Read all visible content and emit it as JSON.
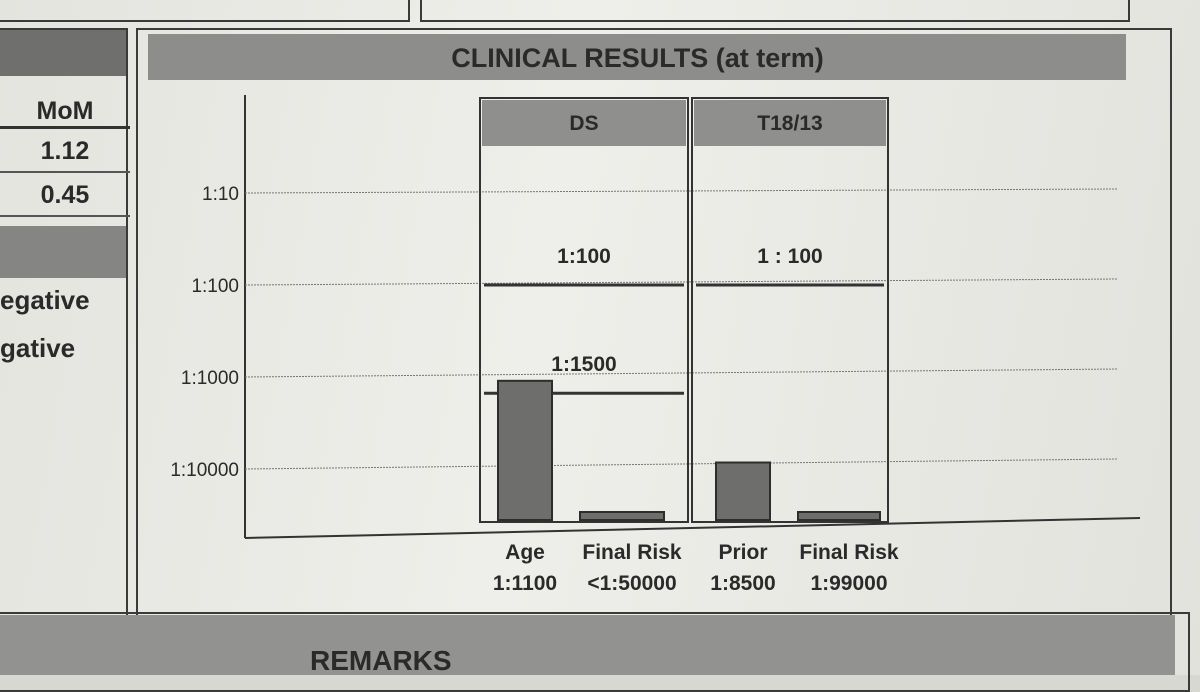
{
  "left_panel": {
    "mom_header": "MoM",
    "mom_values": [
      "1.12",
      "0.45"
    ],
    "results": [
      "egative",
      "gative"
    ]
  },
  "section_title": "CLINICAL RESULTS (at term)",
  "remarks_title": "REMARKS",
  "chart_data": {
    "type": "bar",
    "y_scale": "log-reciprocal",
    "y_ticks": [
      "1:10",
      "1:100",
      "1:1000",
      "1:10000"
    ],
    "groups": [
      {
        "name": "DS",
        "cutoffs": [
          {
            "label": "1:100",
            "value": 100
          },
          {
            "label": "1:1500",
            "value": 1500
          }
        ],
        "bars": [
          {
            "label": "Age",
            "value_label": "1:1100",
            "value": 1100
          },
          {
            "label": "Final Risk",
            "value_label": "<1:50000",
            "value": 50000
          }
        ]
      },
      {
        "name": "T18/13",
        "cutoffs": [
          {
            "label": "1 : 100",
            "value": 100
          }
        ],
        "bars": [
          {
            "label": "Prior",
            "value_label": "1:8500",
            "value": 8500
          },
          {
            "label": "Final Risk",
            "value_label": "1:99000",
            "value": 99000
          }
        ]
      }
    ]
  }
}
